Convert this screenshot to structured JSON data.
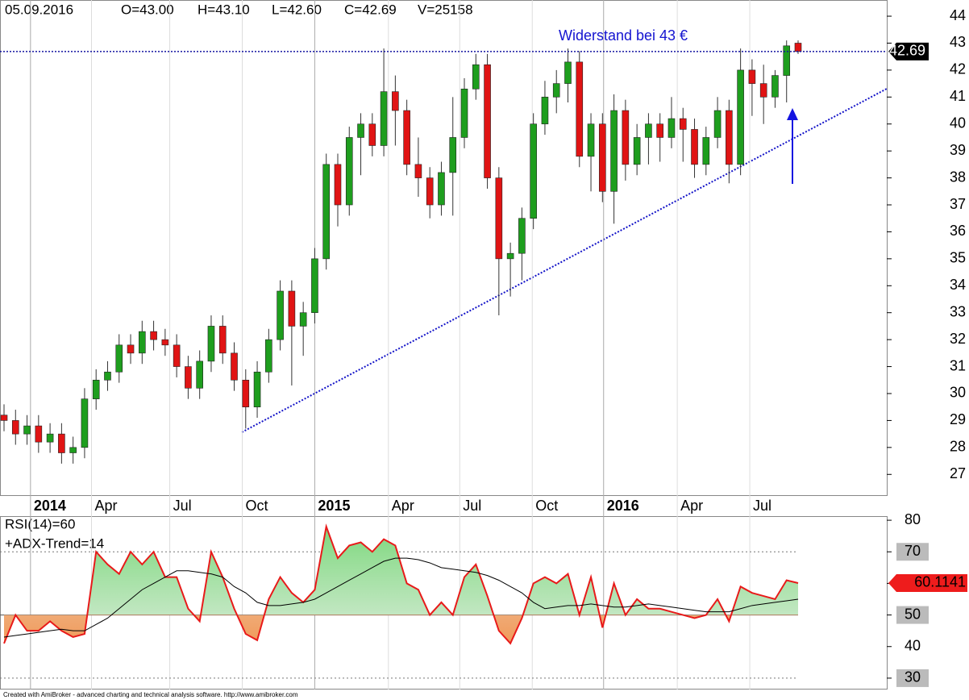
{
  "header": [
    "05.09.2016",
    "O=43.00",
    "H=43.10",
    "L=42.60",
    "C=42.69",
    "V=25158"
  ],
  "chart_data": [
    {
      "type": "candlestick",
      "annotation": "Widerstand bei 43 €",
      "last_label": 42.69,
      "up_color": "#1e9e1e",
      "down_color": "#e01414",
      "open": [
        29.2,
        29.0,
        28.5,
        28.8,
        28.2,
        28.5,
        27.8,
        28.0,
        29.8,
        30.5,
        30.8,
        31.8,
        31.5,
        32.3,
        32.0,
        31.8,
        31.0,
        30.2,
        31.2,
        32.5,
        31.5,
        30.5,
        29.5,
        30.8,
        32.0,
        33.8,
        32.5,
        33.0,
        35.0,
        38.5,
        37.0,
        39.5,
        40.0,
        39.2,
        41.2,
        40.5,
        38.5,
        38.0,
        37.0,
        38.2,
        39.5,
        41.3,
        42.2,
        38.0,
        35.0,
        35.2,
        36.5,
        40.0,
        41.0,
        41.5,
        42.3,
        38.8,
        40.0,
        37.5,
        40.5,
        38.5,
        39.5,
        40.0,
        39.5,
        40.2,
        39.8,
        38.5,
        39.5,
        40.5,
        38.5,
        42.0,
        41.5,
        41.0,
        41.8,
        43.0
      ],
      "high": [
        29.6,
        29.4,
        29.2,
        29.2,
        28.9,
        28.9,
        28.4,
        30.2,
        30.9,
        31.2,
        32.2,
        32.2,
        32.7,
        32.7,
        32.4,
        32.2,
        31.4,
        31.6,
        32.9,
        32.9,
        31.9,
        30.9,
        31.2,
        32.4,
        34.2,
        34.2,
        33.4,
        35.4,
        38.9,
        38.9,
        39.9,
        40.4,
        40.4,
        42.8,
        41.8,
        40.9,
        39.5,
        38.4,
        38.6,
        41.0,
        41.7,
        42.6,
        42.6,
        38.4,
        35.6,
        36.9,
        40.4,
        41.6,
        42.0,
        42.8,
        42.7,
        40.4,
        40.4,
        41.1,
        40.9,
        40.0,
        40.4,
        40.4,
        41.0,
        40.6,
        40.2,
        39.9,
        41.0,
        40.9,
        42.8,
        42.4,
        42.2,
        42.0,
        43.1,
        43.1
      ],
      "low": [
        28.6,
        28.1,
        28.1,
        27.8,
        27.8,
        27.4,
        27.4,
        27.6,
        29.4,
        30.1,
        30.4,
        31.1,
        31.1,
        31.6,
        31.4,
        30.6,
        29.8,
        29.8,
        30.8,
        31.1,
        30.1,
        28.7,
        29.1,
        30.4,
        31.6,
        30.3,
        31.4,
        32.6,
        34.6,
        36.2,
        36.6,
        38.1,
        38.8,
        38.8,
        39.2,
        38.1,
        37.3,
        36.5,
        36.6,
        36.6,
        39.1,
        40.9,
        37.6,
        32.9,
        33.6,
        34.2,
        36.1,
        39.6,
        40.4,
        40.8,
        38.4,
        37.5,
        37.1,
        36.3,
        37.9,
        38.1,
        38.5,
        38.6,
        39.1,
        38.6,
        38.0,
        38.1,
        39.1,
        37.8,
        38.1,
        40.3,
        40.0,
        40.6,
        40.8,
        42.6
      ],
      "close": [
        29.0,
        28.5,
        28.8,
        28.2,
        28.5,
        27.8,
        28.0,
        29.8,
        30.5,
        30.8,
        31.8,
        31.5,
        32.3,
        32.0,
        31.8,
        31.0,
        30.2,
        31.2,
        32.5,
        31.5,
        30.5,
        29.5,
        30.8,
        32.0,
        33.8,
        32.5,
        33.0,
        35.0,
        38.5,
        37.0,
        39.5,
        40.0,
        39.2,
        41.2,
        40.5,
        38.5,
        38.0,
        37.0,
        38.2,
        39.5,
        41.3,
        42.2,
        38.0,
        35.0,
        35.2,
        36.5,
        40.0,
        41.0,
        41.5,
        42.3,
        38.8,
        40.0,
        37.5,
        40.5,
        38.5,
        39.5,
        40.0,
        39.5,
        40.2,
        39.8,
        38.5,
        39.5,
        40.5,
        38.5,
        42.0,
        41.5,
        41.0,
        41.8,
        42.9,
        42.69
      ],
      "xticks": [
        {
          "value": 2.3,
          "label": "2014"
        },
        {
          "value": 7.6,
          "label": "Apr"
        },
        {
          "value": 14.4,
          "label": "Jul"
        },
        {
          "value": 20.7,
          "label": "Oct"
        },
        {
          "value": 27,
          "label": "2015"
        },
        {
          "value": 33.4,
          "label": "Apr"
        },
        {
          "value": 39.6,
          "label": "Jul"
        },
        {
          "value": 45.9,
          "label": "Oct"
        },
        {
          "value": 52.1,
          "label": "2016"
        },
        {
          "value": 58.5,
          "label": "Apr"
        },
        {
          "value": 64.8,
          "label": "Jul"
        }
      ],
      "ylim": [
        26.2,
        44.6
      ],
      "yticks": [
        27,
        28,
        29,
        30,
        31,
        32,
        33,
        34,
        35,
        36,
        37,
        38,
        39,
        40,
        41,
        42,
        43,
        44
      ]
    },
    {
      "type": "line",
      "texts": [
        "RSI(14)=60",
        "+ADX-Trend=14"
      ],
      "last_label": 60.1141,
      "series": [
        {
          "name": "RSI",
          "color": "#e81a1a",
          "values": [
            41,
            50,
            45,
            45,
            48,
            45,
            43,
            44,
            70,
            66,
            63,
            70,
            66,
            70,
            62,
            62,
            52,
            48,
            70,
            62,
            52,
            44,
            42,
            55,
            62,
            57,
            54,
            58,
            78,
            68,
            72,
            73,
            70,
            74,
            72,
            60,
            58,
            50,
            54,
            50,
            62,
            66,
            56,
            45,
            41,
            49,
            60,
            62,
            60,
            63,
            50,
            62,
            46,
            60,
            50,
            55,
            52,
            52,
            51,
            50,
            49,
            50,
            55,
            48,
            59,
            57,
            56,
            55,
            61,
            60.1141
          ]
        },
        {
          "name": "ADX-Trend",
          "color": "#000000",
          "values": [
            43,
            43.5,
            44,
            44.5,
            45,
            45.5,
            45,
            45,
            47,
            49,
            52,
            55,
            58,
            60,
            62,
            64,
            64,
            63.5,
            63,
            62,
            59,
            57,
            54,
            53,
            53,
            53.5,
            54,
            55,
            57,
            59,
            61,
            63,
            65,
            67,
            68,
            68,
            67.5,
            66.5,
            65,
            64.5,
            64,
            63.5,
            62.5,
            61,
            59,
            57,
            54,
            52,
            52.5,
            53,
            53,
            53.5,
            53,
            52.5,
            52.5,
            53,
            53.5,
            53,
            52.5,
            52,
            51.5,
            51,
            51,
            51,
            52,
            53,
            53.5,
            54,
            54.5,
            55
          ]
        }
      ],
      "levels": [
        30,
        50,
        70
      ],
      "ylim": [
        26.4,
        81.3
      ],
      "yticks": [
        30,
        40,
        50,
        60,
        70,
        80
      ]
    }
  ],
  "footer": "Created with AmiBroker - advanced charting and technical analysis software. http://www.amibroker.com"
}
